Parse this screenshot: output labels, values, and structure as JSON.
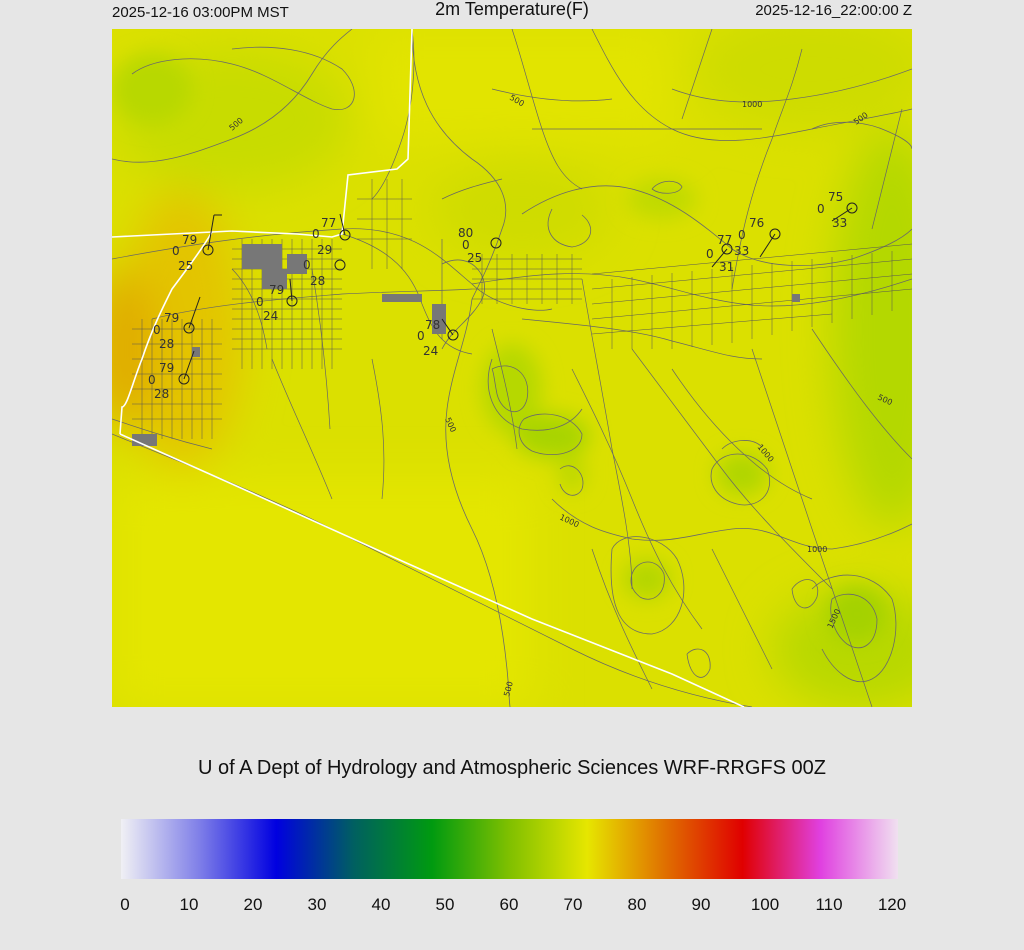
{
  "header": {
    "local_time": "2025-12-16 03:00PM MST",
    "title": "2m Temperature(F)",
    "utc_time": "2025-12-16_22:00:00 Z"
  },
  "credit": "U of A Dept of Hydrology and Atmospheric Sciences WRF-RRGFS 00Z",
  "colorbar": {
    "ticks": [
      "0",
      "10",
      "20",
      "30",
      "40",
      "50",
      "60",
      "70",
      "80",
      "90",
      "100",
      "110",
      "120"
    ],
    "colors": [
      "#f0f0f4",
      "#8080e8",
      "#0000e0",
      "#006060",
      "#009a10",
      "#80c000",
      "#e6e600",
      "#e07000",
      "#e00000",
      "#e040e0",
      "#f0e0f0"
    ]
  },
  "contour_labels": {
    "c500_nw": "500",
    "c500_n": "500",
    "c1000_ne": "1000",
    "c500_far_ne": "500",
    "c500_e": "500",
    "c500_mid": "500",
    "c1000_mid": "1000",
    "c1000_se": "1000",
    "c1000_sse": "1000",
    "c1500": "1500",
    "c500_s": "500"
  },
  "stations": [
    {
      "id": "s1",
      "temp": "79",
      "u": "0",
      "dew": "25"
    },
    {
      "id": "s2",
      "temp": "77",
      "u": "0",
      "dew": "29"
    },
    {
      "id": "s3",
      "temp": "",
      "u": "0",
      "dew": "28"
    },
    {
      "id": "s4",
      "temp": "79",
      "u": "0",
      "dew": "24"
    },
    {
      "id": "s5",
      "temp": "79",
      "u": "0",
      "dew": "28"
    },
    {
      "id": "s6",
      "temp": "79",
      "u": "0",
      "dew": "28"
    },
    {
      "id": "s7",
      "temp": "80",
      "u": "0",
      "dew": "25"
    },
    {
      "id": "s8",
      "temp": "78",
      "u": "0",
      "dew": "24"
    },
    {
      "id": "s9",
      "temp": "76",
      "u": "0",
      "dew": "33"
    },
    {
      "id": "s10",
      "temp": "77",
      "u": "0",
      "dew": "31"
    },
    {
      "id": "s11",
      "temp": "75",
      "u": "0",
      "dew": "33"
    }
  ]
}
